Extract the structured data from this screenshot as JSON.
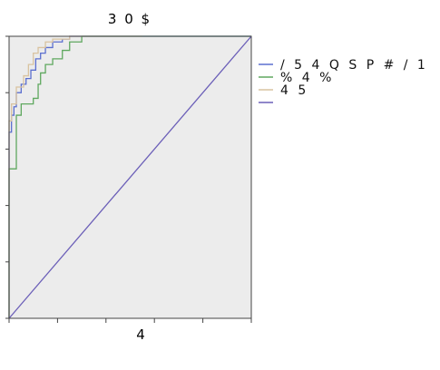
{
  "chart_data": {
    "type": "line",
    "title": "3 0 $",
    "xlabel": "4",
    "ylabel": "",
    "xlim": [
      0,
      1
    ],
    "ylim": [
      0,
      1
    ],
    "grid": false,
    "legend_position": "right",
    "series": [
      {
        "name": "/ 5 4 Q S P # / 1",
        "color": "#5b6fcf",
        "x": [
          0,
          0,
          0.01,
          0.01,
          0.02,
          0.02,
          0.03,
          0.03,
          0.05,
          0.05,
          0.07,
          0.07,
          0.09,
          0.09,
          0.11,
          0.11,
          0.13,
          0.13,
          0.15,
          0.15,
          0.18,
          0.18,
          0.22,
          0.22,
          0.25,
          0.25,
          0.32,
          0.32,
          1.0
        ],
        "y": [
          0,
          0.66,
          0.66,
          0.72,
          0.72,
          0.75,
          0.75,
          0.8,
          0.8,
          0.83,
          0.83,
          0.85,
          0.85,
          0.88,
          0.88,
          0.92,
          0.92,
          0.94,
          0.94,
          0.96,
          0.96,
          0.98,
          0.98,
          0.99,
          0.99,
          1.0,
          1.0,
          1.0,
          1.0
        ]
      },
      {
        "name": "% 4 %",
        "color": "#5fa85f",
        "x": [
          0,
          0,
          0.03,
          0.03,
          0.05,
          0.05,
          0.1,
          0.1,
          0.12,
          0.12,
          0.13,
          0.13,
          0.15,
          0.15,
          0.18,
          0.18,
          0.22,
          0.22,
          0.25,
          0.25,
          0.3,
          0.3,
          0.6,
          1.0
        ],
        "y": [
          0,
          0.53,
          0.53,
          0.72,
          0.72,
          0.76,
          0.76,
          0.78,
          0.78,
          0.83,
          0.83,
          0.87,
          0.87,
          0.9,
          0.9,
          0.92,
          0.92,
          0.95,
          0.95,
          0.98,
          0.98,
          1.0,
          1.0,
          1.0
        ]
      },
      {
        "name": "4 5",
        "color": "#d9c3a0",
        "x": [
          0,
          0,
          0.01,
          0.01,
          0.03,
          0.03,
          0.06,
          0.06,
          0.08,
          0.08,
          0.1,
          0.1,
          0.12,
          0.12,
          0.15,
          0.15,
          0.18,
          0.18,
          0.25,
          0.25,
          0.55
        ],
        "y": [
          0,
          0.7,
          0.7,
          0.76,
          0.76,
          0.82,
          0.82,
          0.86,
          0.86,
          0.9,
          0.9,
          0.94,
          0.94,
          0.96,
          0.96,
          0.98,
          0.98,
          0.99,
          0.99,
          1.0,
          1.0
        ]
      },
      {
        "name": "",
        "color": "#6b5fb8",
        "x": [
          0,
          1
        ],
        "y": [
          0,
          1
        ]
      }
    ]
  },
  "colors": {
    "plot_background": "#ececec",
    "axis": "#444444"
  }
}
